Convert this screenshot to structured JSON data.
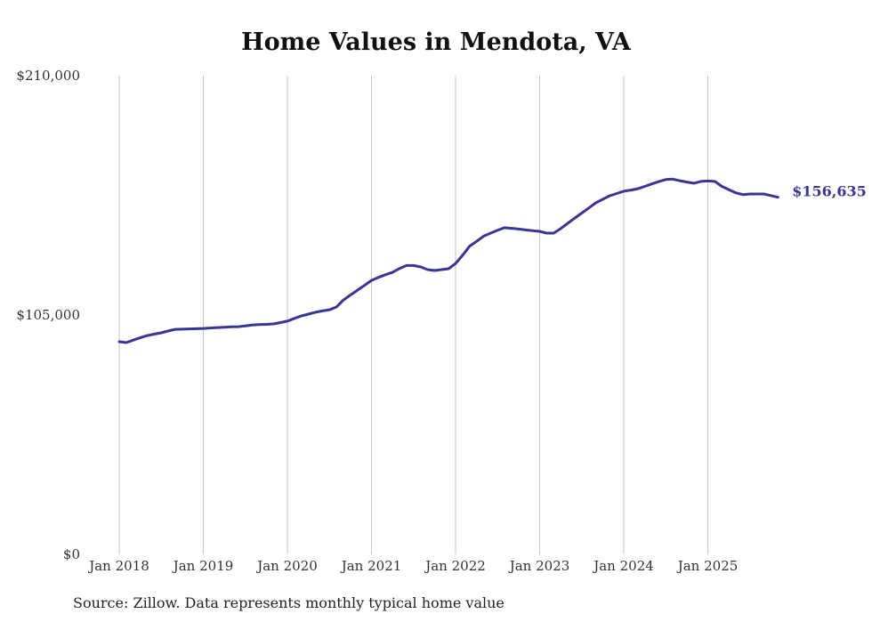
{
  "chart_data": {
    "type": "line",
    "title": "Home Values in Mendota, VA",
    "xlabel": "",
    "ylabel": "",
    "ylim": [
      0,
      210000
    ],
    "yticks": [
      0,
      105000,
      210000
    ],
    "ytick_labels": [
      "$0",
      "$105,000",
      "$210,000"
    ],
    "xtick_labels": [
      "Jan 2018",
      "Jan 2019",
      "Jan 2020",
      "Jan 2021",
      "Jan 2022",
      "Jan 2023",
      "Jan 2024",
      "Jan 2025"
    ],
    "x_start": "Jan 2018",
    "x_unit": "month",
    "grid": "vertical at January of each year",
    "color": "#3b3497",
    "end_label": "$156,635",
    "series": [
      {
        "name": "Typical home value",
        "values": [
          93300,
          92900,
          94000,
          95000,
          96000,
          96600,
          97200,
          98000,
          98700,
          98800,
          98900,
          99000,
          99100,
          99300,
          99500,
          99600,
          99800,
          99900,
          100200,
          100600,
          100800,
          100900,
          101100,
          101700,
          102300,
          103500,
          104600,
          105400,
          106200,
          106800,
          107300,
          108500,
          111600,
          113800,
          115900,
          118000,
          120200,
          121500,
          122700,
          123700,
          125400,
          126700,
          126700,
          126100,
          124900,
          124500,
          124900,
          125300,
          127600,
          131200,
          135200,
          137300,
          139600,
          140900,
          142200,
          143300,
          143000,
          142700,
          142300,
          142000,
          141700,
          140900,
          140900,
          142900,
          145200,
          147500,
          149700,
          151900,
          154200,
          155800,
          157300,
          158300,
          159300,
          159800,
          160400,
          161400,
          162500,
          163500,
          164400,
          164600,
          163900,
          163300,
          162800,
          163600,
          163800,
          163600,
          161400,
          160000,
          158600,
          157800,
          158100,
          158100,
          158100,
          157400,
          156635
        ]
      }
    ]
  },
  "source": "Source: Zillow. Data represents monthly typical home value"
}
